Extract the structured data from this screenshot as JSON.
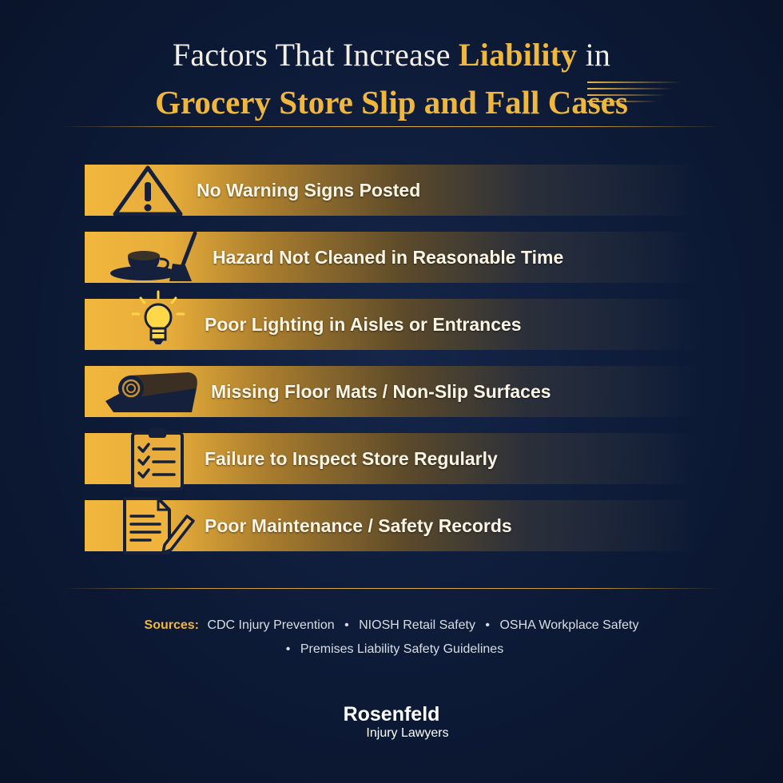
{
  "title": {
    "line1_part1": "Factors That Increase ",
    "line1_highlight": "Liability",
    "line1_part2": " in",
    "line2": "Grocery Store Slip and Fall Cases"
  },
  "factors": [
    {
      "label": "No Warning Signs Posted",
      "icon": "warning-triangle-icon"
    },
    {
      "label": "Hazard Not Cleaned in Reasonable Time",
      "icon": "spill-mop-icon"
    },
    {
      "label": "Poor Lighting in Aisles or Entrances",
      "icon": "light-bulb-icon"
    },
    {
      "label": "Missing Floor Mats / Non-Slip Surfaces",
      "icon": "floor-mat-icon"
    },
    {
      "label": "Failure to Inspect Store Regularly",
      "icon": "clipboard-checklist-icon"
    },
    {
      "label": "Poor Maintenance / Safety Records",
      "icon": "document-pencil-icon"
    }
  ],
  "sources": {
    "title": "Sources:",
    "items": [
      "CDC Injury Prevention",
      "NIOSH Retail Safety",
      "OSHA Workplace Safety",
      "Premises Liability Safety Guidelines"
    ],
    "separator": "•"
  },
  "logo": {
    "name": "Rosenfeld",
    "sub": "Injury Lawyers"
  },
  "colors": {
    "background": "#0d1a36",
    "accent_gold": "#f0b73e",
    "text": "#ffffff"
  }
}
